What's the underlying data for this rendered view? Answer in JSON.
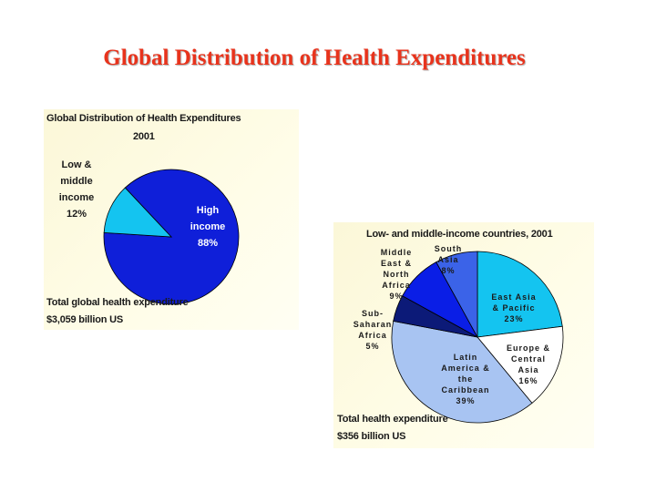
{
  "slide_title": "Global Distribution of Health Expenditures",
  "chart_data": [
    {
      "type": "pie",
      "title": "Global Distribution of Health Expenditures",
      "subtitle": "2001",
      "slices": [
        {
          "lines": [
            "High",
            "income",
            "88%"
          ],
          "value": 88,
          "color": "#0f1fd9"
        },
        {
          "lines": [
            "Low &",
            "middle",
            "income",
            "12%"
          ],
          "value": 12,
          "color": "#14c4f0"
        }
      ],
      "footer": [
        "Total global health expenditure",
        "$3,059 billion US"
      ]
    },
    {
      "type": "pie",
      "title": "Low- and middle-income countries, 2001",
      "slices": [
        {
          "lines": [
            "East Asia",
            "& Pacific",
            "23%"
          ],
          "value": 23,
          "color": "#14c4f0"
        },
        {
          "lines": [
            "Europe &",
            "Central",
            "Asia",
            "16%"
          ],
          "value": 16,
          "color": "#ffffff"
        },
        {
          "lines": [
            "Latin",
            "America &",
            "the",
            "Caribbean",
            "39%"
          ],
          "value": 39,
          "color": "#a8c4f2"
        },
        {
          "lines": [
            "Sub-",
            "Saharan",
            "Africa",
            "5%"
          ],
          "value": 5,
          "color": "#0c1a78"
        },
        {
          "lines": [
            "Middle",
            "East &",
            "North",
            "Africa",
            "9%"
          ],
          "value": 9,
          "color": "#0a1ee6"
        },
        {
          "lines": [
            "South",
            "Asia",
            "8%"
          ],
          "value": 8,
          "color": "#3b63e8"
        }
      ],
      "footer": [
        "Total  health expenditure",
        "$356 billion US"
      ]
    }
  ]
}
